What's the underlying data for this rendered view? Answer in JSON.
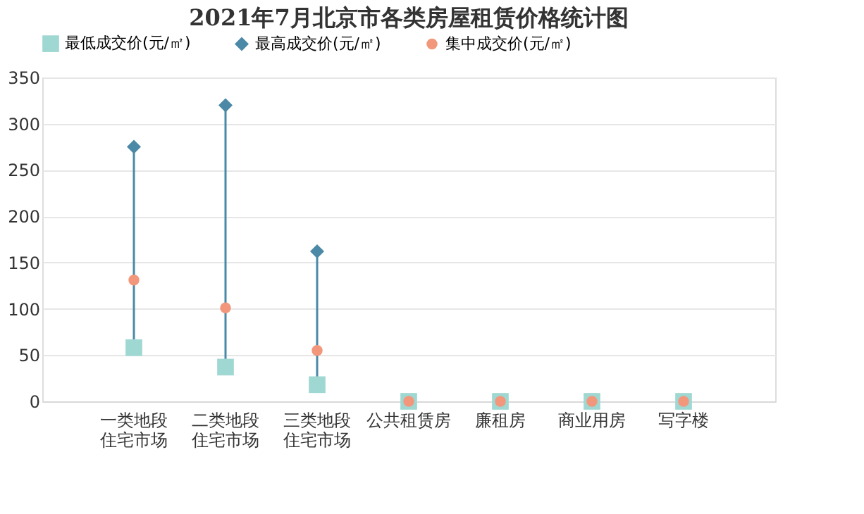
{
  "chart_data": {
    "type": "scatter",
    "title": "2021年7月北京市各类房屋租赁价格统计图",
    "categories": [
      "一类地段住宅市场",
      "二类地段住宅市场",
      "三类地段住宅市场",
      "公共租赁房",
      "廉租房",
      "商业用房",
      "写字楼"
    ],
    "series": [
      {
        "name": "最低成交价(元/㎡)",
        "color": "#9fd8d2",
        "marker": "square",
        "values": [
          58,
          37,
          18,
          0,
          0,
          0,
          0
        ]
      },
      {
        "name": "最高成交价(元/㎡)",
        "color": "#4b89a6",
        "marker": "diamond",
        "values": [
          275,
          320,
          162,
          null,
          null,
          null,
          null
        ]
      },
      {
        "name": "集中成交价(元/㎡)",
        "color": "#f2977c",
        "marker": "circle",
        "values": [
          131,
          101,
          55,
          0,
          0,
          0,
          0
        ]
      }
    ],
    "ylim": [
      0,
      350
    ],
    "yticks": [
      0,
      50,
      100,
      150,
      200,
      250,
      300,
      350
    ],
    "grid": "y",
    "legend": "top"
  }
}
